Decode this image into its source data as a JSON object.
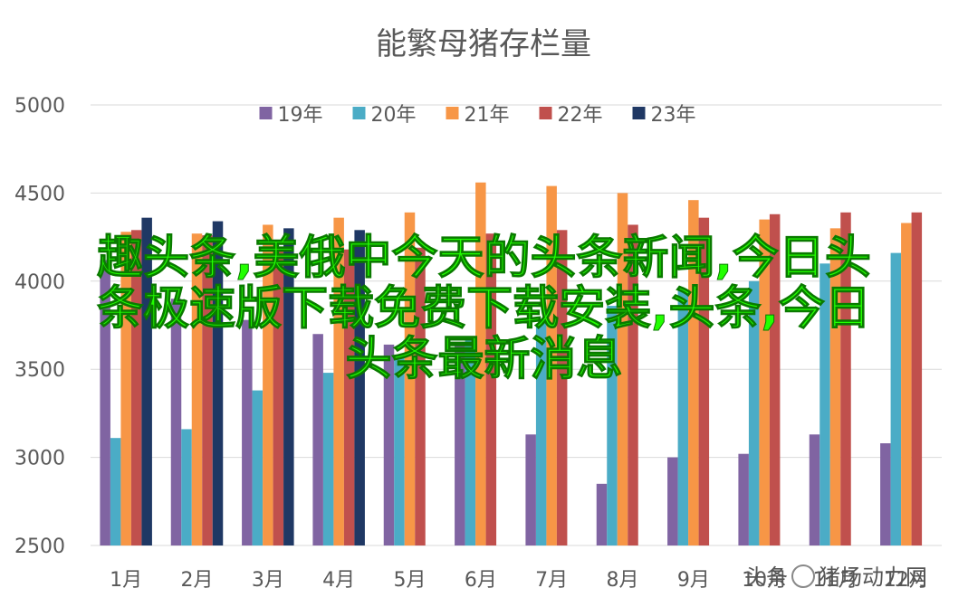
{
  "chart_data": {
    "type": "bar",
    "title": "能繁母猪存栏量",
    "categories": [
      "1月",
      "2月",
      "3月",
      "4月",
      "5月",
      "6月",
      "7月",
      "8月",
      "9月",
      "10月",
      "11月",
      "12月"
    ],
    "series": [
      {
        "name": "19年",
        "color": "#8064a2",
        "values": [
          4120,
          3900,
          3780,
          3700,
          3640,
          3650,
          3130,
          2850,
          3000,
          3020,
          3130,
          3080
        ]
      },
      {
        "name": "20年",
        "color": "#4bacc6",
        "values": [
          3110,
          3160,
          3380,
          3480,
          3570,
          3680,
          3760,
          3860,
          3950,
          4000,
          4100,
          4160
        ]
      },
      {
        "name": "21年",
        "color": "#f79646",
        "values": [
          4280,
          4270,
          4320,
          4360,
          4390,
          4560,
          4540,
          4500,
          4460,
          4350,
          4300,
          4330
        ]
      },
      {
        "name": "22年",
        "color": "#c0504d",
        "values": [
          4290,
          4260,
          4180,
          4180,
          4190,
          4270,
          4290,
          4320,
          4360,
          4380,
          4390,
          4390
        ]
      },
      {
        "name": "23年",
        "color": "#1f3864",
        "values": [
          4360,
          4340,
          4300,
          4290,
          null,
          null,
          null,
          null,
          null,
          null,
          null,
          null
        ]
      }
    ],
    "ylim": [
      2500,
      5000
    ],
    "yticks": [
      2500,
      3000,
      3500,
      4000,
      4500,
      5000
    ],
    "grid": true,
    "legend": "top"
  },
  "overlay": {
    "line1": "趣头条,美俄中今天的头条新闻,今日头",
    "line2": "条极速版下载免费下载安装,头条,今日",
    "line3": "头条最新消息"
  },
  "watermark": {
    "prefix": "头条",
    "suffix": "猪场动力网"
  }
}
